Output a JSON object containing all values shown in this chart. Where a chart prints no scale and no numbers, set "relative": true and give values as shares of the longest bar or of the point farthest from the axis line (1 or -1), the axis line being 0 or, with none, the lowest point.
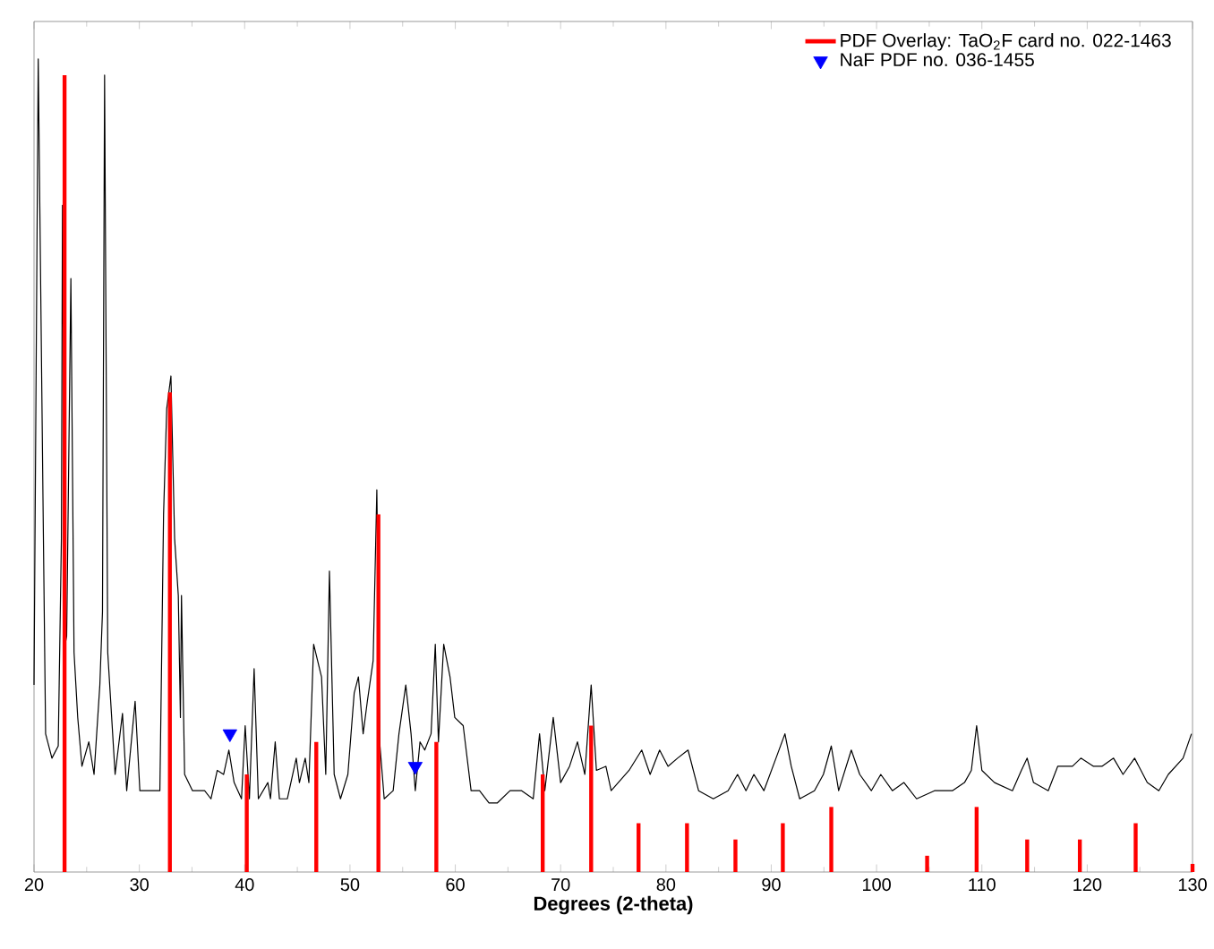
{
  "chart_data": {
    "type": "line",
    "relative": true,
    "xlabel": "Degrees (2-theta)",
    "xlim": [
      20,
      130
    ],
    "xticks": [
      20,
      30,
      40,
      50,
      60,
      70,
      80,
      90,
      100,
      110,
      120,
      130
    ],
    "legend": "top right",
    "grid": false,
    "series": [
      {
        "color": "#000000",
        "x": [
          20.0,
          20.4,
          20.85,
          21.1,
          21.7,
          22.3,
          22.6,
          22.7,
          22.95,
          23.1,
          23.5,
          23.8,
          24.15,
          24.55,
          25.2,
          25.7,
          26.25,
          26.5,
          26.7,
          27.0,
          27.7,
          28.4,
          28.8,
          29.6,
          30.05,
          31.1,
          31.95,
          32.3,
          32.6,
          33.0,
          33.35,
          33.7,
          33.9,
          34.0,
          34.3,
          35.05,
          36.2,
          36.8,
          37.4,
          38.0,
          38.5,
          39.0,
          39.7,
          40.05,
          40.45,
          40.9,
          41.3,
          42.2,
          42.45,
          42.9,
          43.3,
          44.05,
          44.9,
          45.2,
          45.75,
          46.1,
          46.55,
          46.8,
          47.3,
          47.7,
          48.05,
          48.5,
          49.1,
          49.8,
          50.4,
          50.8,
          51.25,
          51.65,
          52.2,
          52.55,
          52.85,
          53.25,
          54.1,
          54.65,
          55.3,
          55.8,
          56.2,
          56.65,
          57.1,
          57.7,
          58.1,
          58.4,
          58.9,
          59.5,
          59.95,
          60.75,
          61.5,
          62.3,
          63.2,
          64.0,
          65.2,
          66.3,
          67.4,
          68.0,
          68.5,
          69.3,
          70.0,
          70.85,
          71.6,
          72.3,
          72.9,
          73.4,
          74.3,
          74.8,
          76.5,
          77.7,
          78.5,
          79.4,
          80.2,
          81.1,
          82.1,
          83.1,
          84.5,
          85.9,
          86.8,
          87.6,
          88.35,
          89.3,
          90.45,
          91.3,
          91.9,
          92.7,
          94.1,
          94.95,
          95.7,
          96.4,
          97.6,
          98.4,
          99.5,
          100.4,
          101.5,
          102.6,
          103.8,
          105.5,
          107.2,
          108.35,
          109.0,
          109.5,
          110.0,
          111.2,
          112.9,
          113.75,
          114.3,
          114.9,
          116.3,
          117.2,
          118.6,
          119.4,
          120.6,
          121.4,
          122.5,
          123.4,
          124.5,
          125.7,
          126.8,
          127.7,
          129.1,
          129.9
        ],
        "values": [
          0.23,
          1.0,
          0.46,
          0.17,
          0.14,
          0.155,
          0.41,
          0.82,
          0.28,
          0.29,
          0.73,
          0.27,
          0.19,
          0.13,
          0.16,
          0.12,
          0.23,
          0.32,
          0.98,
          0.27,
          0.12,
          0.195,
          0.1,
          0.21,
          0.1,
          0.1,
          0.1,
          0.44,
          0.57,
          0.61,
          0.41,
          0.34,
          0.19,
          0.34,
          0.12,
          0.1,
          0.1,
          0.09,
          0.125,
          0.12,
          0.15,
          0.11,
          0.09,
          0.18,
          0.09,
          0.25,
          0.09,
          0.11,
          0.09,
          0.16,
          0.09,
          0.09,
          0.14,
          0.11,
          0.14,
          0.11,
          0.28,
          null,
          0.24,
          0.12,
          0.37,
          0.12,
          0.09,
          0.12,
          0.22,
          0.24,
          0.17,
          0.21,
          0.26,
          0.47,
          0.155,
          0.09,
          0.1,
          0.17,
          0.23,
          0.17,
          0.1,
          0.16,
          0.15,
          0.17,
          0.28,
          0.16,
          0.28,
          0.24,
          0.19,
          0.18,
          0.1,
          0.1,
          0.085,
          0.085,
          0.1,
          0.1,
          0.09,
          0.17,
          0.1,
          0.19,
          0.11,
          0.13,
          0.16,
          0.12,
          0.23,
          0.125,
          0.13,
          0.1,
          0.125,
          0.15,
          0.12,
          0.15,
          0.13,
          0.14,
          0.15,
          0.1,
          0.09,
          0.1,
          0.12,
          0.1,
          0.12,
          0.1,
          0.14,
          0.17,
          0.13,
          0.09,
          0.1,
          0.12,
          0.155,
          0.1,
          0.15,
          0.12,
          0.1,
          0.12,
          0.1,
          0.11,
          0.09,
          0.1,
          0.1,
          0.11,
          0.125,
          0.18,
          0.125,
          0.11,
          0.1,
          0.125,
          0.14,
          0.11,
          0.1,
          0.13,
          0.13,
          0.14,
          0.13,
          0.13,
          0.14,
          0.12,
          0.14,
          0.11,
          0.1,
          0.12,
          0.14,
          0.17
        ]
      },
      {
        "type": "bar",
        "name": "PDF Overlay:  TaO$_{2}$F card no. 022-1463",
        "color": "#ff0000",
        "x": [
          22.9,
          32.9,
          40.2,
          46.8,
          52.7,
          58.2,
          68.3,
          72.9,
          77.4,
          82.0,
          86.6,
          91.1,
          95.7,
          104.8,
          109.5,
          114.3,
          119.3,
          124.6,
          130.0
        ],
        "values": [
          0.98,
          0.59,
          0.12,
          0.16,
          0.44,
          0.16,
          0.12,
          0.18,
          0.06,
          0.06,
          0.04,
          0.06,
          0.08,
          0.02,
          0.08,
          0.04,
          0.04,
          0.06,
          0.01
        ]
      },
      {
        "type": "scatter",
        "name": "NaF  PDF no. 036-1455",
        "color": "#0000ff",
        "marker": "triangle",
        "x": [
          38.6,
          56.2
        ],
        "values": [
          0.17,
          0.13
        ]
      }
    ]
  }
}
